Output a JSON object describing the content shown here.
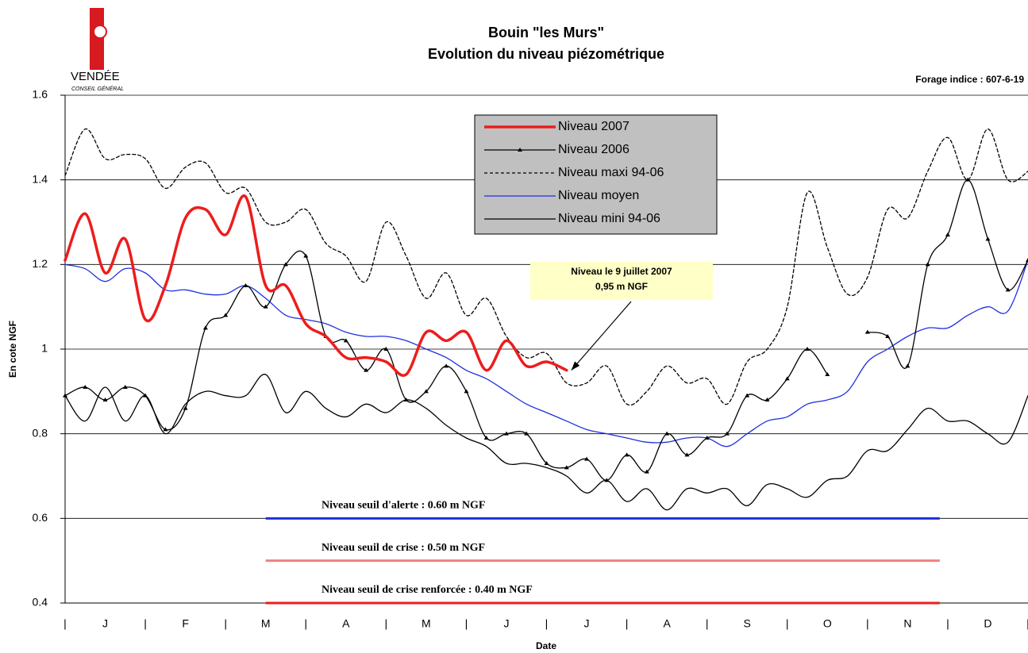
{
  "logo": {
    "name": "VENDÉE",
    "subtitle": "CONSEIL GÉNÉRAL"
  },
  "chart_data": {
    "type": "line",
    "title": "Bouin \"les Murs\"",
    "subtitle": "Evolution du niveau piézométrique",
    "note": "Forage indice : 607-6-19",
    "y_label": "En cote NGF",
    "x_label": "Date",
    "categories": [
      "J",
      "F",
      "M",
      "A",
      "M",
      "J",
      "J",
      "A",
      "S",
      "O",
      "N",
      "D"
    ],
    "x_separator_label": "|",
    "xlim": [
      0,
      12
    ],
    "xticks": [
      0,
      1,
      2,
      3,
      4,
      5,
      6,
      7,
      8,
      9,
      10,
      11,
      12
    ],
    "ylim": [
      0.4,
      1.6
    ],
    "yticks": [
      0.4,
      0.6,
      0.8,
      1,
      1.2,
      1.4,
      1.6
    ],
    "grid": true,
    "x": [
      0,
      0.25,
      0.5,
      0.75,
      1,
      1.25,
      1.5,
      1.75,
      2,
      2.25,
      2.5,
      2.75,
      3,
      3.25,
      3.5,
      3.75,
      4,
      4.25,
      4.5,
      4.75,
      5,
      5.25,
      5.5,
      5.75,
      6,
      6.25,
      6.5,
      6.75,
      7,
      7.25,
      7.5,
      7.75,
      8,
      8.25,
      8.5,
      8.75,
      9,
      9.25,
      9.5,
      9.75,
      10,
      10.25,
      10.5,
      10.75,
      11,
      11.25,
      11.5,
      11.75,
      12
    ],
    "series": [
      {
        "name": "Niveau 2007",
        "color": "#ee1c1c",
        "line_width": 3.5,
        "values": [
          1.21,
          1.32,
          1.18,
          1.26,
          1.07,
          1.15,
          1.31,
          1.33,
          1.27,
          1.36,
          1.15,
          1.15,
          1.06,
          1.03,
          0.98,
          0.98,
          0.97,
          0.94,
          1.04,
          1.02,
          1.04,
          0.95,
          1.02,
          0.96,
          0.97,
          0.95,
          null,
          null,
          null,
          null,
          null,
          null,
          null,
          null,
          null,
          null,
          null,
          null,
          null,
          null,
          null,
          null,
          null,
          null,
          null,
          null,
          null,
          null,
          null
        ]
      },
      {
        "name": "Niveau 2006",
        "color": "#000000",
        "line_width": 1.3,
        "marker": "triangle",
        "values": [
          0.89,
          0.91,
          0.88,
          0.91,
          0.89,
          0.81,
          0.86,
          1.05,
          1.08,
          1.15,
          1.1,
          1.2,
          1.22,
          1.03,
          1.02,
          0.95,
          1.0,
          0.88,
          0.9,
          0.96,
          0.9,
          0.79,
          0.8,
          0.8,
          0.73,
          0.72,
          0.74,
          0.69,
          0.75,
          0.71,
          0.8,
          0.75,
          0.79,
          0.8,
          0.89,
          0.88,
          0.93,
          1.0,
          0.94,
          null,
          1.04,
          1.03,
          0.96,
          1.2,
          1.27,
          1.4,
          1.26,
          1.14,
          1.21
        ]
      },
      {
        "name": "Niveau maxi 94-06",
        "color": "#000000",
        "line_width": 1.3,
        "dash": true,
        "values": [
          1.41,
          1.52,
          1.45,
          1.46,
          1.45,
          1.38,
          1.43,
          1.44,
          1.37,
          1.38,
          1.3,
          1.3,
          1.33,
          1.25,
          1.22,
          1.16,
          1.3,
          1.22,
          1.12,
          1.18,
          1.08,
          1.12,
          1.03,
          0.98,
          0.99,
          0.92,
          0.92,
          0.96,
          0.87,
          0.9,
          0.96,
          0.92,
          0.93,
          0.87,
          0.97,
          1.0,
          1.1,
          1.37,
          1.24,
          1.13,
          1.17,
          1.33,
          1.31,
          1.42,
          1.5,
          1.4,
          1.52,
          1.4,
          1.42
        ]
      },
      {
        "name": "Niveau moyen",
        "color": "#1f2fe0",
        "line_width": 1.3,
        "values": [
          1.2,
          1.19,
          1.16,
          1.19,
          1.18,
          1.14,
          1.14,
          1.13,
          1.13,
          1.15,
          1.12,
          1.08,
          1.07,
          1.06,
          1.04,
          1.03,
          1.03,
          1.02,
          1.0,
          0.98,
          0.95,
          0.93,
          0.9,
          0.87,
          0.85,
          0.83,
          0.81,
          0.8,
          0.79,
          0.78,
          0.78,
          0.79,
          0.79,
          0.77,
          0.8,
          0.83,
          0.84,
          0.87,
          0.88,
          0.9,
          0.97,
          1.0,
          1.03,
          1.05,
          1.05,
          1.08,
          1.1,
          1.09,
          1.21
        ]
      },
      {
        "name": "Niveau mini 94-06",
        "color": "#000000",
        "line_width": 1.3,
        "values": [
          0.89,
          0.83,
          0.91,
          0.83,
          0.89,
          0.8,
          0.87,
          0.9,
          0.89,
          0.89,
          0.94,
          0.85,
          0.9,
          0.86,
          0.84,
          0.87,
          0.85,
          0.88,
          0.86,
          0.82,
          0.79,
          0.77,
          0.73,
          0.73,
          0.72,
          0.7,
          0.66,
          0.69,
          0.64,
          0.67,
          0.62,
          0.67,
          0.66,
          0.67,
          0.63,
          0.68,
          0.67,
          0.65,
          0.69,
          0.7,
          0.76,
          0.76,
          0.81,
          0.86,
          0.83,
          0.83,
          0.8,
          0.78,
          0.89
        ]
      }
    ],
    "thresholds": [
      {
        "label": "Niveau seuil d'alerte : 0.60 m NGF",
        "value": 0.6,
        "color": "#1f2fe0",
        "x_range": [
          2.5,
          10.9
        ]
      },
      {
        "label": "Niveau seuil de crise : 0.50 m NGF",
        "value": 0.5,
        "color": "#f08080",
        "x_range": [
          2.5,
          10.9
        ]
      },
      {
        "label": "Niveau seuil de crise renforcée : 0.40  m NGF",
        "value": 0.4,
        "color": "#ee1c1c",
        "x_range": [
          2.5,
          10.9
        ]
      }
    ],
    "annotation": {
      "lines": [
        "Niveau le 9 juillet 2007",
        "0,95 m NGF"
      ]
    }
  }
}
